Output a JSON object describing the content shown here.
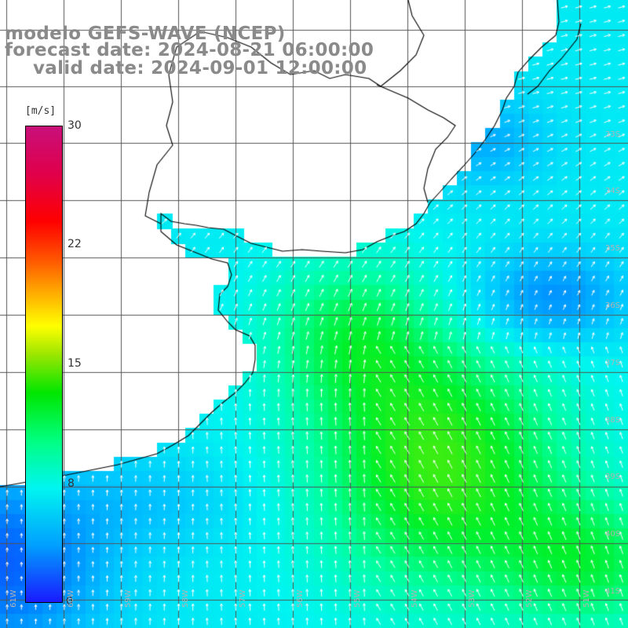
{
  "title": {
    "line1": "modelo GEFS-WAVE (NCEP)",
    "line2": "forecast date: 2024-08-21 06:00:00",
    "line3": "valid date: 2024-09-01 12:00:00"
  },
  "colorbar": {
    "unit": "[m/s]",
    "ticks": [
      "30",
      "22",
      "15",
      "8",
      "0"
    ],
    "tick_values": [
      30,
      22,
      15,
      8,
      0
    ],
    "range": [
      0,
      30
    ],
    "colors": [
      "#1a1aff",
      "#00a0ff",
      "#00f5f0",
      "#00ff80",
      "#00e600",
      "#9be600",
      "#ffff00",
      "#ffa000",
      "#ff5500",
      "#ff0000",
      "#e0004a",
      "#c8107a"
    ]
  },
  "map": {
    "parameter": "wind speed",
    "lat_labels": [
      "33S",
      "34S",
      "35S",
      "36S",
      "37S",
      "38S",
      "39S",
      "40S",
      "41S"
    ],
    "lon_labels": [
      "61W",
      "60W",
      "59W",
      "58W",
      "57W",
      "56W",
      "55W",
      "54W",
      "53W",
      "52W",
      "51W"
    ],
    "extent": {
      "lon_min": -61.5,
      "lon_max": -50.8,
      "lat_min": -41.4,
      "lat_max": -31.6
    },
    "land_color": "#ffffff",
    "grid_color": "#555555",
    "arrow_color": "#ffffff"
  }
}
